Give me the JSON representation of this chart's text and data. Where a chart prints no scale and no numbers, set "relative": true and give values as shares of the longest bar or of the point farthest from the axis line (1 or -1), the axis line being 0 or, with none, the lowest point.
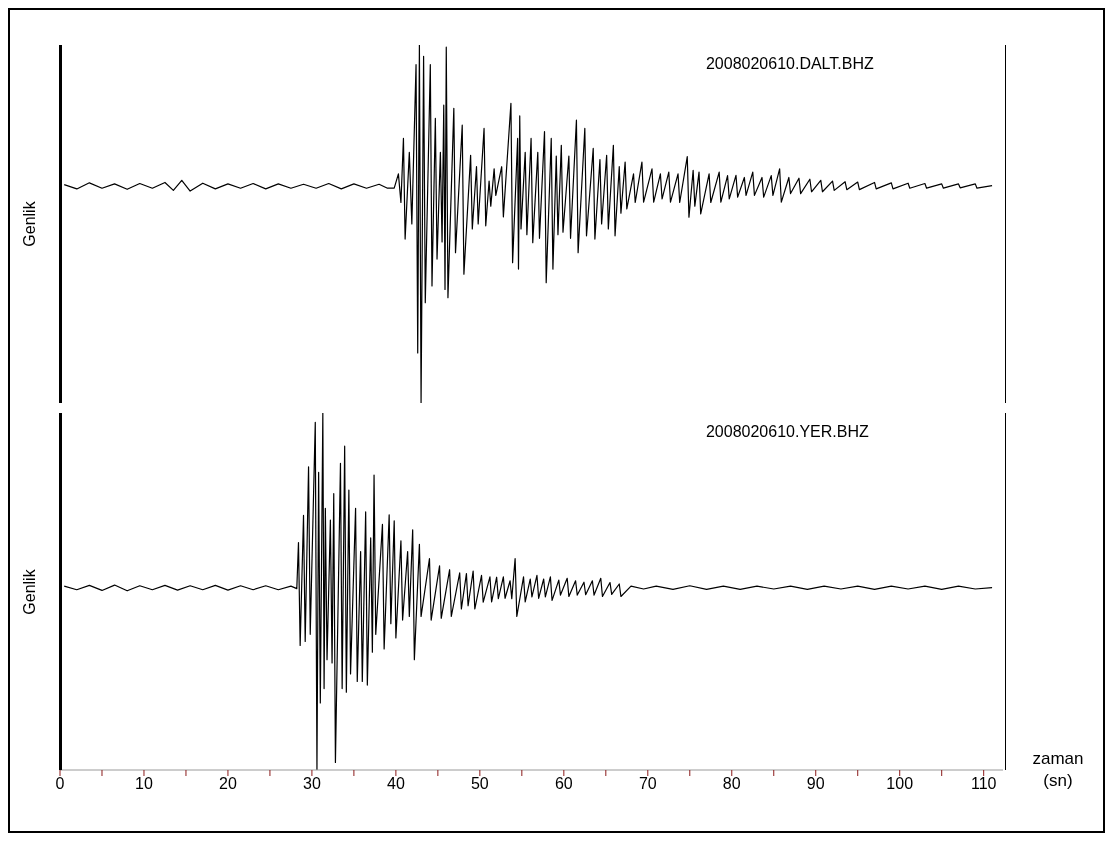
{
  "chart_data": [
    {
      "type": "line",
      "relative": true,
      "xlim": [
        0,
        112.3
      ],
      "ylabel": "Genlik",
      "annotations": [
        "2008020610.DALT.BHZ"
      ],
      "tick_labels": false,
      "marker": "none",
      "x": [
        0.5,
        2,
        3.5,
        5,
        6.5,
        8,
        9.5,
        11,
        12.5,
        13.5,
        14.5,
        15.5,
        17,
        18.5,
        20,
        21.5,
        23,
        24.5,
        26,
        27.5,
        29,
        30.5,
        32,
        33.5,
        35,
        36.5,
        38,
        39,
        39.8,
        40.3,
        40.6,
        40.9,
        41.1,
        41.6,
        41.9,
        42.4,
        42.6,
        42.8,
        43.0,
        43.3,
        43.5,
        44.1,
        44.3,
        44.7,
        44.9,
        45.3,
        45.5,
        45.7,
        45.85,
        46.0,
        46.2,
        46.9,
        47.1,
        47.9,
        48.1,
        48.9,
        49.1,
        49.6,
        49.8,
        50.5,
        50.7,
        51.1,
        51.3,
        51.7,
        51.9,
        52.6,
        52.8,
        53.7,
        53.9,
        54.5,
        54.6,
        54.75,
        54.9,
        55.4,
        55.6,
        56.1,
        56.3,
        56.9,
        57.1,
        57.7,
        57.9,
        58.5,
        58.7,
        59.1,
        59.3,
        59.7,
        59.9,
        60.6,
        60.8,
        61.5,
        61.7,
        62.5,
        62.7,
        63.5,
        63.7,
        64.3,
        64.5,
        65.1,
        65.3,
        65.9,
        66.1,
        66.6,
        66.8,
        67.3,
        67.5,
        68.3,
        68.5,
        69.3,
        69.5,
        70.5,
        70.7,
        71.5,
        71.7,
        72.5,
        72.7,
        73.6,
        73.8,
        74.7,
        74.9,
        75.4,
        75.6,
        76.1,
        76.3,
        77.3,
        77.5,
        78.5,
        78.7,
        79.5,
        79.7,
        80.5,
        80.7,
        81.5,
        81.7,
        82.5,
        82.7,
        83.6,
        83.8,
        84.7,
        84.9,
        85.7,
        85.9,
        86.8,
        87,
        88,
        88.2,
        89.3,
        89.5,
        90.6,
        90.8,
        92,
        92.2,
        93.5,
        93.7,
        95,
        95.2,
        97,
        97.2,
        99,
        99.2,
        101,
        101.2,
        103,
        103.2,
        105,
        105.2,
        107,
        107.2,
        109,
        109.2,
        111
      ],
      "series": [
        {
          "color": "#000000",
          "values": [
            0.61,
            0.598,
            0.615,
            0.6,
            0.612,
            0.597,
            0.613,
            0.6,
            0.616,
            0.594,
            0.622,
            0.592,
            0.614,
            0.598,
            0.612,
            0.6,
            0.613,
            0.598,
            0.612,
            0.6,
            0.611,
            0.6,
            0.613,
            0.598,
            0.612,
            0.6,
            0.611,
            0.6,
            0.6,
            0.64,
            0.56,
            0.739,
            0.458,
            0.7,
            0.5,
            0.945,
            0.14,
            1.0,
            0,
            0.968,
            0.28,
            0.945,
            0.327,
            0.795,
            0.402,
            0.7,
            0.45,
            0.832,
            0.317,
            0.994,
            0.294,
            0.823,
            0.42,
            0.776,
            0.36,
            0.692,
            0.486,
            0.66,
            0.5,
            0.767,
            0.495,
            0.62,
            0.55,
            0.654,
            0.58,
            0.66,
            0.52,
            0.837,
            0.392,
            0.739,
            0.374,
            0.802,
            0.486,
            0.7,
            0.47,
            0.739,
            0.448,
            0.7,
            0.46,
            0.758,
            0.336,
            0.739,
            0.374,
            0.69,
            0.47,
            0.72,
            0.477,
            0.69,
            0.46,
            0.79,
            0.42,
            0.767,
            0.467,
            0.711,
            0.458,
            0.68,
            0.5,
            0.692,
            0.486,
            0.72,
            0.467,
            0.66,
            0.53,
            0.673,
            0.542,
            0.64,
            0.56,
            0.673,
            0.561,
            0.654,
            0.561,
            0.64,
            0.57,
            0.645,
            0.561,
            0.64,
            0.56,
            0.688,
            0.519,
            0.65,
            0.55,
            0.645,
            0.528,
            0.64,
            0.56,
            0.645,
            0.561,
            0.635,
            0.57,
            0.636,
            0.575,
            0.63,
            0.58,
            0.645,
            0.58,
            0.63,
            0.575,
            0.635,
            0.58,
            0.654,
            0.561,
            0.63,
            0.585,
            0.628,
            0.585,
            0.625,
            0.59,
            0.622,
            0.59,
            0.62,
            0.594,
            0.618,
            0.596,
            0.617,
            0.596,
            0.616,
            0.598,
            0.615,
            0.598,
            0.614,
            0.6,
            0.613,
            0.6,
            0.612,
            0.6,
            0.612,
            0.601,
            0.612,
            0.6,
            0.607
          ]
        }
      ]
    },
    {
      "type": "line",
      "relative": true,
      "xlim": [
        0,
        112.3
      ],
      "xticks": [
        0,
        {
          "value": 5,
          "label": null
        },
        10,
        {
          "value": 15,
          "label": null
        },
        20,
        {
          "value": 25,
          "label": null
        },
        30,
        {
          "value": 35,
          "label": null
        },
        40,
        {
          "value": 45,
          "label": null
        },
        50,
        {
          "value": 55,
          "label": null
        },
        60,
        {
          "value": 65,
          "label": null
        },
        70,
        {
          "value": 75,
          "label": null
        },
        80,
        {
          "value": 85,
          "label": null
        },
        90,
        {
          "value": 95,
          "label": null
        },
        100,
        {
          "value": 105,
          "label": null
        },
        110
      ],
      "xlabel": "zaman\n(sn)",
      "ylabel": "Genlik",
      "annotations": [
        "2008020610.YER.BHZ"
      ],
      "tick_labels": "x",
      "marker": "none",
      "x": [
        0.5,
        2,
        3.5,
        5,
        6.5,
        8,
        9.5,
        11,
        12.5,
        14,
        15.5,
        17,
        18.5,
        20,
        21.5,
        23,
        24.5,
        26,
        27.5,
        28.2,
        28.4,
        28.6,
        29.0,
        29.2,
        29.6,
        29.8,
        30.4,
        30.6,
        30.8,
        31.0,
        31.3,
        31.45,
        31.6,
        31.8,
        32.2,
        32.4,
        32.6,
        32.8,
        33.4,
        33.6,
        33.9,
        34.1,
        34.4,
        34.6,
        35.2,
        35.4,
        35.8,
        36.0,
        36.4,
        36.6,
        37.0,
        37.2,
        37.4,
        37.6,
        38.4,
        38.6,
        39.2,
        39.4,
        39.8,
        40.0,
        40.6,
        40.8,
        41.4,
        41.6,
        42.0,
        42.2,
        42.8,
        43.0,
        44.0,
        44.2,
        45.2,
        45.4,
        46.4,
        46.6,
        47.6,
        47.8,
        48.4,
        48.6,
        49.2,
        49.4,
        50.2,
        50.4,
        51.2,
        51.4,
        52.0,
        52.2,
        52.8,
        53.0,
        53.6,
        53.8,
        54.2,
        54.4,
        55.2,
        55.4,
        56.0,
        56.2,
        56.8,
        57,
        57.6,
        57.8,
        58.4,
        58.6,
        59.4,
        59.6,
        60.4,
        60.6,
        61.4,
        61.6,
        62.4,
        62.6,
        63.4,
        63.6,
        64.4,
        64.6,
        65.5,
        65.7,
        66.6,
        66.8,
        68,
        69.5,
        71,
        73,
        75,
        77,
        79,
        81,
        83,
        85,
        87,
        89,
        91,
        93,
        95,
        97,
        99,
        101,
        103,
        105,
        107,
        109,
        111
      ],
      "series": [
        {
          "color": "#000000",
          "values": [
            0.515,
            0.505,
            0.517,
            0.503,
            0.518,
            0.502,
            0.516,
            0.505,
            0.517,
            0.504,
            0.516,
            0.505,
            0.517,
            0.504,
            0.516,
            0.505,
            0.516,
            0.505,
            0.515,
            0.508,
            0.637,
            0.349,
            0.713,
            0.36,
            0.849,
            0.38,
            0.974,
            0,
            0.834,
            0.188,
            1.0,
            0.228,
            0.733,
            0.309,
            0.7,
            0.3,
            0.774,
            0.021,
            0.859,
            0.228,
            0.907,
            0.218,
            0.784,
            0.269,
            0.733,
            0.248,
            0.612,
            0.248,
            0.723,
            0.238,
            0.65,
            0.33,
            0.826,
            0.38,
            0.688,
            0.339,
            0.715,
            0.41,
            0.698,
            0.37,
            0.642,
            0.42,
            0.612,
            0.43,
            0.673,
            0.309,
            0.632,
            0.43,
            0.592,
            0.42,
            0.572,
            0.425,
            0.561,
            0.43,
            0.552,
            0.451,
            0.55,
            0.46,
            0.557,
            0.451,
            0.545,
            0.47,
            0.541,
            0.471,
            0.54,
            0.48,
            0.541,
            0.481,
            0.53,
            0.48,
            0.592,
            0.43,
            0.541,
            0.471,
            0.535,
            0.485,
            0.545,
            0.481,
            0.535,
            0.485,
            0.541,
            0.475,
            0.532,
            0.49,
            0.537,
            0.486,
            0.53,
            0.49,
            0.526,
            0.491,
            0.53,
            0.49,
            0.537,
            0.486,
            0.525,
            0.492,
            0.521,
            0.486,
            0.515,
            0.507,
            0.515,
            0.506,
            0.516,
            0.506,
            0.515,
            0.506,
            0.515,
            0.507,
            0.515,
            0.506,
            0.515,
            0.507,
            0.515,
            0.506,
            0.515,
            0.507,
            0.515,
            0.506,
            0.515,
            0.507,
            0.511
          ]
        }
      ]
    }
  ]
}
